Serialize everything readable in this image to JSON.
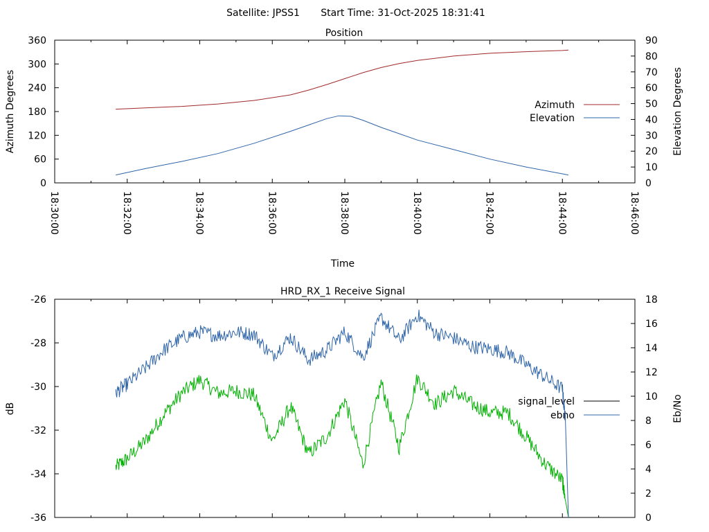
{
  "header": {
    "satellite": "Satellite: JPSS1",
    "start_time": "Start Time: 31-Oct-2025 18:31:41"
  },
  "colors": {
    "azimuth": "#a02828",
    "elevation": "#2e64a8",
    "signal_level": "#00b000",
    "ebno": "#2e64a8",
    "signal_legend": "#000000"
  },
  "chart_data": [
    {
      "type": "line",
      "title": "Position",
      "xlabel": "Time",
      "ylabel": "Azimuth Degrees",
      "y2label": "Elevation Degrees",
      "xlim": [
        "18:30:00",
        "18:46:00"
      ],
      "x_ticks": [
        "18:30:00",
        "18:32:00",
        "18:34:00",
        "18:36:00",
        "18:38:00",
        "18:40:00",
        "18:42:00",
        "18:44:00",
        "18:46:00"
      ],
      "ylim": [
        0,
        360
      ],
      "y_ticks": [
        0,
        60,
        120,
        180,
        240,
        300,
        360
      ],
      "y2lim": [
        0,
        90
      ],
      "y2_ticks": [
        0,
        10,
        20,
        30,
        40,
        50,
        60,
        70,
        80,
        90
      ],
      "legend_position": "right",
      "grid": false,
      "series": [
        {
          "name": "Azimuth",
          "axis": "left",
          "x": [
            "18:31:41",
            "18:32:30",
            "18:33:30",
            "18:34:30",
            "18:35:30",
            "18:36:30",
            "18:37:00",
            "18:37:30",
            "18:38:00",
            "18:38:30",
            "18:39:00",
            "18:39:30",
            "18:40:00",
            "18:41:00",
            "18:42:00",
            "18:43:00",
            "18:44:00",
            "18:44:10"
          ],
          "values": [
            186,
            189,
            193,
            199,
            208,
            222,
            234,
            248,
            263,
            278,
            291,
            301,
            309,
            320,
            327,
            331,
            334,
            335
          ]
        },
        {
          "name": "Elevation",
          "axis": "right",
          "x": [
            "18:31:41",
            "18:32:30",
            "18:33:30",
            "18:34:30",
            "18:35:30",
            "18:36:30",
            "18:37:00",
            "18:37:30",
            "18:37:50",
            "18:38:10",
            "18:38:30",
            "18:39:00",
            "18:39:30",
            "18:40:00",
            "18:41:00",
            "18:42:00",
            "18:43:00",
            "18:44:10"
          ],
          "values": [
            5,
            9,
            13.5,
            18.5,
            25,
            32.5,
            36.5,
            40.5,
            42.3,
            42,
            39.5,
            35,
            31,
            27,
            21,
            15,
            10,
            5
          ]
        }
      ]
    },
    {
      "type": "line",
      "title": "HRD_RX_1 Receive Signal",
      "xlabel": "",
      "ylabel": "dB",
      "y2label": "Eb/No",
      "xlim": [
        "18:30:00",
        "18:46:00"
      ],
      "ylim": [
        -36,
        -26
      ],
      "y_ticks": [
        -36,
        -34,
        -32,
        -30,
        -28,
        -26
      ],
      "y2lim": [
        0,
        18
      ],
      "y2_ticks": [
        0,
        2,
        4,
        6,
        8,
        10,
        12,
        14,
        16,
        18
      ],
      "legend_position": "right",
      "grid": false,
      "series": [
        {
          "name": "signal_level",
          "axis": "left",
          "x": [
            "18:31:41",
            "18:32:00",
            "18:32:30",
            "18:33:00",
            "18:33:30",
            "18:34:00",
            "18:34:30",
            "18:35:00",
            "18:35:30",
            "18:36:00",
            "18:36:30",
            "18:37:00",
            "18:37:30",
            "18:38:00",
            "18:38:30",
            "18:39:00",
            "18:39:30",
            "18:40:00",
            "18:40:30",
            "18:41:00",
            "18:41:30",
            "18:42:00",
            "18:42:30",
            "18:43:00",
            "18:43:30",
            "18:44:00",
            "18:44:05",
            "18:44:10"
          ],
          "values": [
            -33.7,
            -33.3,
            -32.5,
            -31.3,
            -30.3,
            -29.7,
            -30.3,
            -30.2,
            -30.4,
            -32.5,
            -30.9,
            -33.1,
            -32.3,
            -30.6,
            -33.6,
            -29.8,
            -32.8,
            -29.6,
            -30.8,
            -30.2,
            -30.8,
            -31.2,
            -31.2,
            -32.3,
            -33.5,
            -34.3,
            -35.2,
            -36.0
          ]
        },
        {
          "name": "ebno",
          "axis": "right",
          "x": [
            "18:31:41",
            "18:32:00",
            "18:32:30",
            "18:33:00",
            "18:33:30",
            "18:34:00",
            "18:34:30",
            "18:35:00",
            "18:35:30",
            "18:36:00",
            "18:36:30",
            "18:37:00",
            "18:37:30",
            "18:38:00",
            "18:38:30",
            "18:39:00",
            "18:39:30",
            "18:40:00",
            "18:40:30",
            "18:41:00",
            "18:41:30",
            "18:42:00",
            "18:42:30",
            "18:43:00",
            "18:43:30",
            "18:44:00",
            "18:44:05",
            "18:44:10"
          ],
          "values": [
            10.3,
            11.0,
            12.3,
            13.8,
            14.8,
            15.3,
            15.0,
            15.3,
            15.1,
            13.3,
            14.9,
            13.0,
            13.8,
            15.3,
            13.2,
            16.5,
            14.6,
            16.7,
            15.2,
            14.8,
            14.1,
            13.9,
            13.6,
            12.6,
            11.6,
            10.6,
            8.0,
            0.0
          ]
        }
      ]
    }
  ]
}
